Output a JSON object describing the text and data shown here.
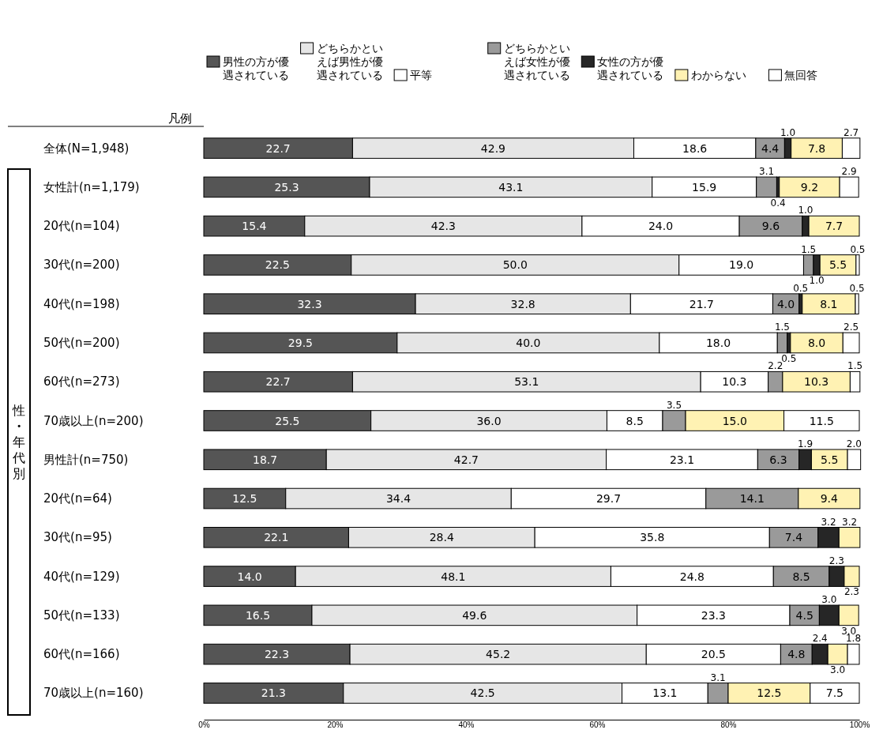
{
  "chart_data": {
    "type": "bar",
    "orientation": "horizontal",
    "stacked": true,
    "legend": "top",
    "legend_title": "凡例",
    "categories": [
      "全体(N=1,948)",
      "女性計(n=1,179)",
      "20代(n=104)",
      "30代(n=200)",
      "40代(n=198)",
      "50代(n=200)",
      "60代(n=273)",
      "70歳以上(n=200)",
      "男性計(n=750)",
      "20代(n=64)",
      "30代(n=95)",
      "40代(n=129)",
      "50代(n=133)",
      "60代(n=166)",
      "70歳以上(n=160)"
    ],
    "xlim": [
      0,
      100
    ],
    "xticks": [
      {
        "value": 0,
        "label": "0%"
      },
      {
        "value": 20,
        "label": "20%"
      },
      {
        "value": 40,
        "label": "40%"
      },
      {
        "value": 60,
        "label": "60%"
      },
      {
        "value": 80,
        "label": "80%"
      },
      {
        "value": 100,
        "label": "100%"
      }
    ],
    "annotations": [
      "性・年代別"
    ],
    "series": [
      {
        "name": "男性の方が優遇されている",
        "color": "#555555",
        "values": [
          22.7,
          25.3,
          15.4,
          22.5,
          32.3,
          29.5,
          22.7,
          25.5,
          18.7,
          12.5,
          22.1,
          14.0,
          16.5,
          22.3,
          21.3
        ],
        "value_labels": [
          "22.7",
          "25.3",
          "15.4",
          "22.5",
          "32.3",
          "29.5",
          "22.7",
          "25.5",
          "18.7",
          "12.5",
          "22.1",
          "14.0",
          "16.5",
          "22.3",
          "21.3"
        ]
      },
      {
        "name": "どちらかといえば男性が優遇されている",
        "color": "#e6e6e6",
        "values": [
          42.9,
          43.1,
          42.3,
          50.0,
          32.8,
          40.0,
          53.1,
          36.0,
          42.7,
          34.4,
          28.4,
          48.1,
          49.6,
          45.2,
          42.5
        ],
        "value_labels": [
          "42.9",
          "43.1",
          "42.3",
          "50.0",
          "32.8",
          "40.0",
          "53.1",
          "36.0",
          "42.7",
          "34.4",
          "28.4",
          "48.1",
          "49.6",
          "45.2",
          "42.5"
        ]
      },
      {
        "name": "平等",
        "color": "#ffffff",
        "values": [
          18.6,
          15.9,
          24.0,
          19.0,
          21.7,
          18.0,
          10.3,
          8.5,
          23.1,
          29.7,
          35.8,
          24.8,
          23.3,
          20.5,
          13.1
        ],
        "value_labels": [
          "18.6",
          "15.9",
          "24.0",
          "19.0",
          "21.7",
          "18.0",
          "10.3",
          "8.5",
          "23.1",
          "29.7",
          "35.8",
          "24.8",
          "23.3",
          "20.5",
          "13.1"
        ]
      },
      {
        "name": "どちらかといえば女性が優遇されている",
        "color": "#9a9a9a",
        "values": [
          4.4,
          3.1,
          9.6,
          1.5,
          4.0,
          1.5,
          2.2,
          3.5,
          6.3,
          14.1,
          7.4,
          8.5,
          4.5,
          4.8,
          3.1
        ],
        "value_labels": [
          "4.4",
          "3.1",
          "9.6",
          "1.5",
          "4.0",
          "1.5",
          "2.2",
          "3.5",
          "6.3",
          "14.1",
          "7.4",
          "8.5",
          "4.5",
          "4.8",
          "3.1"
        ]
      },
      {
        "name": "女性の方が優遇されている",
        "color": "#262626",
        "values": [
          1.0,
          0.4,
          1.0,
          1.0,
          0.5,
          0.5,
          0,
          0,
          1.9,
          0,
          3.2,
          2.3,
          3.0,
          2.4,
          0
        ],
        "value_labels": [
          "1.0",
          "0.4",
          "1.0",
          "1.0",
          "0.5",
          "0.5",
          null,
          null,
          "1.9",
          null,
          "3.2",
          "2.3",
          "3.0",
          "2.4",
          null
        ]
      },
      {
        "name": "わからない",
        "color": "#fff2b3",
        "values": [
          7.8,
          9.2,
          7.7,
          5.5,
          8.1,
          8.0,
          10.3,
          15.0,
          5.5,
          9.4,
          3.2,
          2.3,
          3.0,
          3.0,
          12.5
        ],
        "value_labels": [
          "7.8",
          "9.2",
          "7.7",
          "5.5",
          "8.1",
          "8.0",
          "10.3",
          "15.0",
          "5.5",
          "9.4",
          "3.2",
          "2.3",
          "3.0",
          "3.0",
          "12.5"
        ]
      },
      {
        "name": "無回答",
        "color": "#ffffff",
        "values": [
          2.7,
          2.9,
          0,
          0.5,
          0.5,
          2.5,
          1.5,
          11.5,
          2.0,
          0,
          0,
          0,
          0,
          1.8,
          7.5
        ],
        "value_labels": [
          "2.7",
          "2.9",
          null,
          "0.5",
          "0.5",
          "2.5",
          "1.5",
          "11.5",
          "2.0",
          null,
          null,
          null,
          null,
          "1.8",
          "7.5"
        ]
      }
    ]
  }
}
